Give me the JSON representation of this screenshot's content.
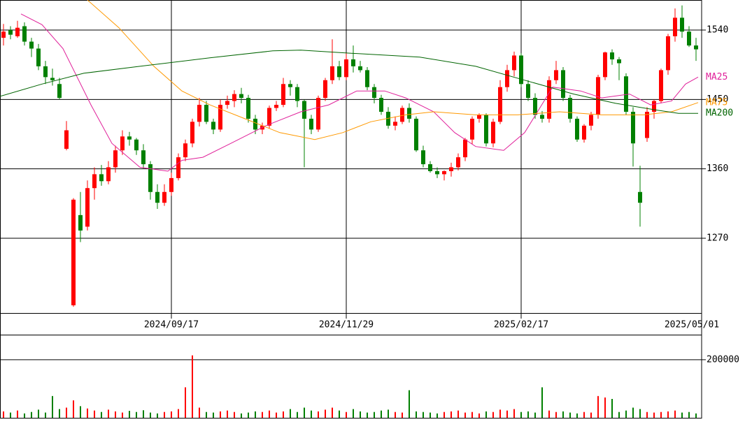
{
  "chart_data": {
    "type": "candlestick",
    "up_color": "#ff0000",
    "down_color": "#008000",
    "xlim": [
      -0.5,
      99.8
    ],
    "xticks": [
      {
        "value": 24,
        "label": "2024/09/17"
      },
      {
        "value": 49,
        "label": "2024/11/29"
      },
      {
        "value": 74,
        "label": "2025/02/17"
      },
      {
        "value": 99.8,
        "label": "2025/05/01"
      }
    ],
    "ylim": [
      1173,
      1579
    ],
    "yticks": [
      1270,
      1360,
      1450,
      1540
    ],
    "ohlc": [
      [
        1530,
        1548,
        1520,
        1538
      ],
      [
        1540,
        1545,
        1528,
        1534
      ],
      [
        1532,
        1552,
        1530,
        1543
      ],
      [
        1545,
        1550,
        1520,
        1525
      ],
      [
        1525,
        1530,
        1505,
        1516
      ],
      [
        1516,
        1522,
        1488,
        1493
      ],
      [
        1493,
        1500,
        1470,
        1479
      ],
      [
        1478,
        1490,
        1468,
        1475
      ],
      [
        1470,
        1478,
        1450,
        1452
      ],
      [
        1386,
        1422,
        1384,
        1410
      ],
      [
        1183,
        1322,
        1181,
        1320
      ],
      [
        1300,
        1330,
        1265,
        1280
      ],
      [
        1285,
        1345,
        1280,
        1335
      ],
      [
        1335,
        1362,
        1320,
        1353
      ],
      [
        1353,
        1365,
        1338,
        1344
      ],
      [
        1344,
        1370,
        1340,
        1362
      ],
      [
        1362,
        1390,
        1355,
        1384
      ],
      [
        1384,
        1410,
        1378,
        1402
      ],
      [
        1402,
        1408,
        1390,
        1398
      ],
      [
        1398,
        1400,
        1378,
        1384
      ],
      [
        1384,
        1392,
        1360,
        1366
      ],
      [
        1366,
        1370,
        1320,
        1330
      ],
      [
        1330,
        1340,
        1308,
        1316
      ],
      [
        1316,
        1340,
        1312,
        1330
      ],
      [
        1330,
        1355,
        1325,
        1348
      ],
      [
        1348,
        1380,
        1345,
        1375
      ],
      [
        1375,
        1398,
        1370,
        1393
      ],
      [
        1393,
        1425,
        1388,
        1421
      ],
      [
        1421,
        1452,
        1415,
        1443
      ],
      [
        1443,
        1448,
        1418,
        1421
      ],
      [
        1421,
        1425,
        1405,
        1411
      ],
      [
        1411,
        1450,
        1408,
        1443
      ],
      [
        1443,
        1455,
        1438,
        1448
      ],
      [
        1448,
        1462,
        1440,
        1457
      ],
      [
        1457,
        1465,
        1445,
        1452
      ],
      [
        1452,
        1456,
        1420,
        1425
      ],
      [
        1425,
        1430,
        1405,
        1411
      ],
      [
        1411,
        1420,
        1405,
        1416
      ],
      [
        1416,
        1442,
        1412,
        1439
      ],
      [
        1439,
        1448,
        1435,
        1443
      ],
      [
        1443,
        1478,
        1440,
        1470
      ],
      [
        1470,
        1475,
        1455,
        1466
      ],
      [
        1466,
        1470,
        1440,
        1448
      ],
      [
        1448,
        1450,
        1362,
        1425
      ],
      [
        1425,
        1430,
        1405,
        1411
      ],
      [
        1411,
        1455,
        1408,
        1452
      ],
      [
        1452,
        1478,
        1448,
        1475
      ],
      [
        1475,
        1528,
        1470,
        1493
      ],
      [
        1493,
        1500,
        1475,
        1479
      ],
      [
        1479,
        1510,
        1475,
        1502
      ],
      [
        1502,
        1520,
        1485,
        1493
      ],
      [
        1493,
        1500,
        1485,
        1488
      ],
      [
        1488,
        1492,
        1462,
        1466
      ],
      [
        1466,
        1470,
        1445,
        1452
      ],
      [
        1452,
        1456,
        1430,
        1434
      ],
      [
        1434,
        1440,
        1412,
        1416
      ],
      [
        1416,
        1428,
        1410,
        1421
      ],
      [
        1421,
        1442,
        1418,
        1439
      ],
      [
        1439,
        1445,
        1420,
        1425
      ],
      [
        1425,
        1428,
        1382,
        1384
      ],
      [
        1384,
        1390,
        1362,
        1366
      ],
      [
        1366,
        1370,
        1355,
        1357
      ],
      [
        1357,
        1362,
        1348,
        1353
      ],
      [
        1353,
        1358,
        1345,
        1357
      ],
      [
        1357,
        1368,
        1350,
        1362
      ],
      [
        1362,
        1380,
        1358,
        1375
      ],
      [
        1375,
        1400,
        1370,
        1398
      ],
      [
        1398,
        1428,
        1392,
        1425
      ],
      [
        1425,
        1432,
        1420,
        1430
      ],
      [
        1430,
        1432,
        1389,
        1393
      ],
      [
        1393,
        1425,
        1388,
        1421
      ],
      [
        1421,
        1475,
        1418,
        1466
      ],
      [
        1466,
        1495,
        1460,
        1488
      ],
      [
        1488,
        1512,
        1480,
        1507
      ],
      [
        1507,
        1510,
        1466,
        1470
      ],
      [
        1470,
        1475,
        1448,
        1452
      ],
      [
        1452,
        1458,
        1425,
        1430
      ],
      [
        1430,
        1435,
        1420,
        1425
      ],
      [
        1425,
        1480,
        1420,
        1475
      ],
      [
        1475,
        1500,
        1470,
        1488
      ],
      [
        1488,
        1492,
        1448,
        1452
      ],
      [
        1452,
        1456,
        1420,
        1425
      ],
      [
        1425,
        1428,
        1395,
        1398
      ],
      [
        1398,
        1418,
        1394,
        1416
      ],
      [
        1416,
        1434,
        1410,
        1430
      ],
      [
        1430,
        1482,
        1425,
        1479
      ],
      [
        1479,
        1512,
        1475,
        1511
      ],
      [
        1511,
        1515,
        1495,
        1502
      ],
      [
        1502,
        1505,
        1475,
        1497
      ],
      [
        1480,
        1484,
        1430,
        1434
      ],
      [
        1434,
        1440,
        1363,
        1393
      ],
      [
        1330,
        1364,
        1285,
        1316
      ],
      [
        1400,
        1440,
        1395,
        1434
      ],
      [
        1434,
        1450,
        1425,
        1448
      ],
      [
        1448,
        1490,
        1445,
        1488
      ],
      [
        1488,
        1535,
        1482,
        1532
      ],
      [
        1532,
        1568,
        1525,
        1556
      ],
      [
        1556,
        1572,
        1530,
        1538
      ],
      [
        1538,
        1545,
        1518,
        1520
      ],
      [
        1520,
        1530,
        1500,
        1515
      ]
    ],
    "moving_averages": [
      {
        "name": "MA25",
        "color": "#e0209a",
        "x": [
          2.5,
          5.5,
          8.5,
          12.5,
          15.5,
          19.5,
          23.5,
          25.5,
          28.5,
          32.5,
          37.5,
          42.5,
          46.5,
          50.5,
          54.5,
          57.5,
          61.5,
          64.5,
          67.5,
          71.5,
          74.5,
          78.5,
          82.5,
          85.5,
          89.5,
          92.5,
          95.5,
          97.5,
          99.3
        ],
        "values": [
          1561,
          1547,
          1516,
          1443,
          1393,
          1362,
          1357,
          1371,
          1375,
          1393,
          1416,
          1434,
          1443,
          1461,
          1461,
          1452,
          1434,
          1407,
          1389,
          1384,
          1407,
          1466,
          1461,
          1452,
          1457,
          1443,
          1448,
          1470,
          1479
        ]
      },
      {
        "name": "MA75",
        "color": "#ff9900",
        "x": [
          12,
          16.5,
          21.5,
          25.5,
          29.5,
          34.5,
          39.5,
          44.5,
          48.5,
          52.5,
          57.5,
          61.5,
          67.5,
          73.5,
          79.5,
          85.5,
          91.5,
          95.5,
          99.3
        ],
        "values": [
          1579,
          1543,
          1493,
          1461,
          1443,
          1425,
          1407,
          1398,
          1407,
          1421,
          1430,
          1434,
          1430,
          1430,
          1434,
          1430,
          1430,
          1434,
          1446
        ]
      },
      {
        "name": "MA200",
        "color": "#006400",
        "x": [
          -0.5,
          5.5,
          11.5,
          19.5,
          29.5,
          38.5,
          42.5,
          49.5,
          59.5,
          67.5,
          74.5,
          81.5,
          87.5,
          93.5,
          96.5,
          99.3
        ],
        "values": [
          1454,
          1470,
          1484,
          1493,
          1504,
          1513,
          1514,
          1510,
          1505,
          1493,
          1475,
          1457,
          1445,
          1436,
          1432,
          1432
        ]
      }
    ],
    "volume": {
      "ylim": [
        0,
        284000
      ],
      "yticks": [
        200000
      ],
      "values": [
        22000,
        18000,
        25000,
        15000,
        20000,
        28000,
        18000,
        75000,
        30000,
        35000,
        60000,
        40000,
        32000,
        25000,
        20000,
        28000,
        22000,
        18000,
        24000,
        20000,
        26000,
        18000,
        15000,
        20000,
        22000,
        30000,
        105000,
        215000,
        35000,
        20000,
        18000,
        22000,
        25000,
        20000,
        15000,
        18000,
        22000,
        20000,
        25000,
        18000,
        22000,
        30000,
        20000,
        35000,
        25000,
        22000,
        28000,
        35000,
        25000,
        20000,
        30000,
        22000,
        18000,
        20000,
        25000,
        28000,
        20000,
        18000,
        95000,
        22000,
        20000,
        18000,
        15000,
        20000,
        22000,
        25000,
        18000,
        20000,
        15000,
        22000,
        20000,
        28000,
        25000,
        30000,
        20000,
        22000,
        18000,
        105000,
        25000,
        20000,
        22000,
        18000,
        15000,
        20000,
        18000,
        75000,
        70000,
        65000,
        20000,
        25000,
        35000,
        30000,
        20000,
        18000,
        20000,
        22000,
        25000,
        18000,
        20000,
        15000
      ]
    }
  }
}
